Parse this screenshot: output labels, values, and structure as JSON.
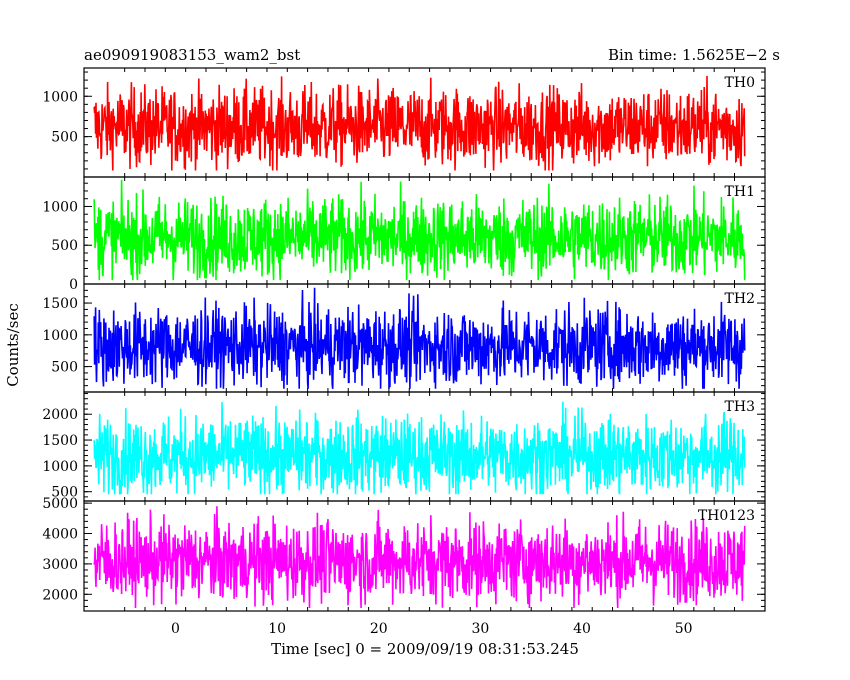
{
  "header": {
    "left_title": "ae090919083153_wam2_bst",
    "right_title": "Bin time: 1.5625E−2 s"
  },
  "chart_data": {
    "type": "line",
    "title": "ae090919083153_wam2_bst",
    "subtitle": "Bin time: 1.5625E−2 s",
    "xlabel": "Time [sec] 0 = 2009/09/19 08:31:53.245",
    "ylabel": "Counts/sec",
    "xlim": [
      -9,
      58
    ],
    "x_range_of_data": [
      -8,
      56
    ],
    "x_ticks": [
      0,
      10,
      20,
      30,
      40,
      50
    ],
    "x_tick_labels": [
      "0",
      "10",
      "20",
      "30",
      "40",
      "50"
    ],
    "grid": false,
    "panels": [
      {
        "name": "TH0",
        "color": "#ff0000",
        "ylim": [
          0,
          1350
        ],
        "y_ticks": [
          500,
          1000
        ],
        "y_tick_labels": [
          "500",
          "1000"
        ],
        "approx_mean": 620,
        "approx_min": 80,
        "approx_max": 1340
      },
      {
        "name": "TH1",
        "color": "#00ff00",
        "ylim": [
          0,
          1380
        ],
        "y_ticks": [
          0,
          500,
          1000
        ],
        "y_tick_labels": [
          "0",
          "500",
          "1000"
        ],
        "approx_mean": 600,
        "approx_min": 50,
        "approx_max": 1370
      },
      {
        "name": "TH2",
        "color": "#0000ff",
        "ylim": [
          100,
          1800
        ],
        "y_ticks": [
          500,
          1000,
          1500
        ],
        "y_tick_labels": [
          "500",
          "1000",
          "1500"
        ],
        "approx_mean": 820,
        "approx_min": 150,
        "approx_max": 1750
      },
      {
        "name": "TH3",
        "color": "#00ffff",
        "ylim": [
          320,
          2430
        ],
        "y_ticks": [
          500,
          1000,
          1500,
          2000
        ],
        "y_tick_labels": [
          "500",
          "1000",
          "1500",
          "2000"
        ],
        "approx_mean": 1200,
        "approx_min": 450,
        "approx_max": 2420
      },
      {
        "name": "TH0123",
        "color": "#ff00ff",
        "ylim": [
          1450,
          5070
        ],
        "y_ticks": [
          2000,
          3000,
          4000,
          5000
        ],
        "y_tick_labels": [
          "2000",
          "3000",
          "4000",
          "5000"
        ],
        "approx_mean": 3100,
        "approx_min": 1550,
        "approx_max": 5000
      }
    ]
  }
}
